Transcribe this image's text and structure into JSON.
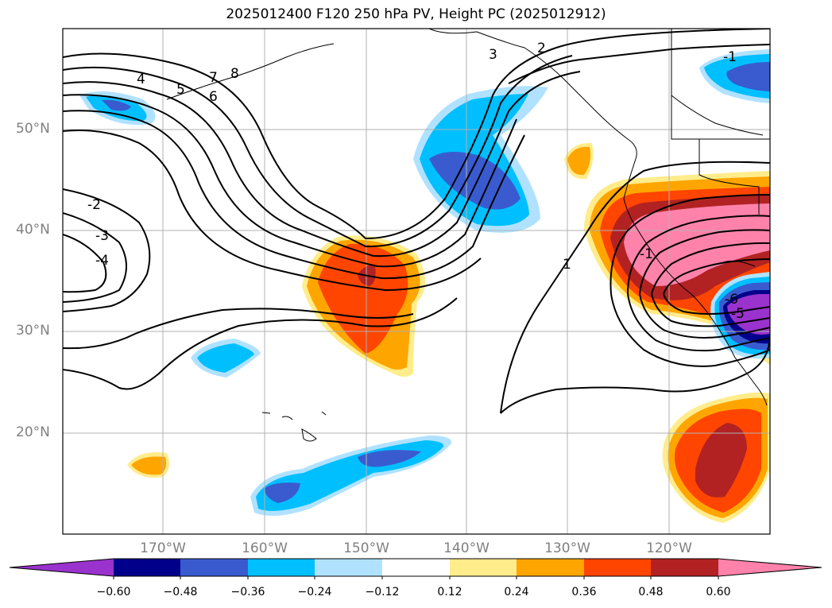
{
  "title": "2025012400 F120 250 hPa PV, Height PC (2025012912)",
  "lat_labels": [
    "50°N",
    "40°N",
    "30°N",
    "20°N"
  ],
  "lon_labels": [
    "170°W",
    "160°W",
    "150°W",
    "140°W",
    "130°W",
    "120°W"
  ],
  "colorbar": {
    "ticks": [
      "−0.60",
      "−0.48",
      "−0.36",
      "−0.24",
      "−0.12",
      "0.12",
      "0.24",
      "0.36",
      "0.48",
      "0.60"
    ],
    "colors": [
      "#9a32cd",
      "#00008b",
      "#3a5bcf",
      "#00bfff",
      "#b0e2ff",
      "#ffffff",
      "#ffec8b",
      "#ffa500",
      "#ff4500",
      "#b22222",
      "#ff82ab"
    ]
  },
  "contour_labels": [
    "4",
    "5",
    "7",
    "8",
    "6",
    "3",
    "2",
    "-2",
    "-3",
    "-4",
    "-1",
    "1",
    "-1",
    "-5",
    "-6"
  ]
}
